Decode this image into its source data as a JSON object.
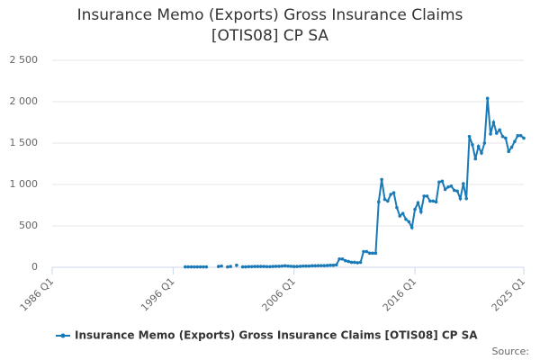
{
  "chart_data": {
    "type": "line",
    "title": "Insurance Memo (Exports) Gross Insurance Claims [OTIS08] CP SA",
    "source": "Source:",
    "categories": [
      "1986 Q1",
      null,
      null,
      null,
      null,
      null,
      null,
      null,
      null,
      null,
      null,
      null,
      null,
      null,
      null,
      null,
      null,
      null,
      null,
      null,
      null,
      null,
      null,
      null,
      null,
      null,
      null,
      null,
      null,
      null,
      null,
      null,
      null,
      null,
      null,
      null,
      null,
      null,
      null,
      null,
      "1996 Q1",
      null,
      null,
      null,
      null,
      null,
      null,
      null,
      null,
      null,
      null,
      null,
      null,
      null,
      null,
      null,
      null,
      null,
      null,
      null,
      null,
      null,
      null,
      null,
      null,
      null,
      null,
      null,
      null,
      null,
      null,
      null,
      null,
      null,
      null,
      null,
      null,
      null,
      null,
      null,
      "2006 Q1",
      null,
      null,
      null,
      null,
      null,
      null,
      null,
      null,
      null,
      null,
      null,
      null,
      null,
      null,
      null,
      null,
      null,
      null,
      null,
      null,
      null,
      null,
      null,
      null,
      null,
      null,
      null,
      null,
      null,
      null,
      null,
      null,
      null,
      null,
      null,
      null,
      null,
      null,
      null,
      "2016 Q1",
      null,
      null,
      null,
      null,
      null,
      null,
      null,
      null,
      null,
      null,
      null,
      null,
      null,
      null,
      null,
      null,
      null,
      null,
      null,
      null,
      null,
      null,
      null,
      null,
      null,
      null,
      null,
      null,
      null,
      null,
      null,
      null,
      null,
      null,
      null,
      "2025 Q1"
    ],
    "series": [
      {
        "name": "Insurance Memo (Exports) Gross Insurance Claims [OTIS08] CP SA",
        "color": "#1a7ab8",
        "values": [
          null,
          null,
          null,
          null,
          null,
          null,
          null,
          null,
          null,
          null,
          null,
          null,
          null,
          null,
          null,
          null,
          null,
          null,
          null,
          null,
          null,
          null,
          null,
          null,
          null,
          null,
          null,
          null,
          null,
          null,
          null,
          null,
          null,
          null,
          null,
          null,
          null,
          null,
          null,
          null,
          null,
          null,
          null,
          null,
          5,
          5,
          5,
          5,
          5,
          5,
          5,
          5,
          null,
          null,
          null,
          10,
          15,
          null,
          5,
          10,
          null,
          25,
          null,
          5,
          5,
          8,
          8,
          10,
          10,
          10,
          10,
          8,
          8,
          10,
          12,
          12,
          15,
          18,
          15,
          12,
          10,
          10,
          12,
          15,
          15,
          15,
          18,
          18,
          20,
          20,
          20,
          22,
          25,
          25,
          30,
          100,
          100,
          80,
          70,
          60,
          60,
          55,
          60,
          190,
          190,
          170,
          170,
          170,
          790,
          1060,
          820,
          800,
          880,
          900,
          720,
          620,
          650,
          580,
          550,
          480,
          700,
          780,
          670,
          860,
          860,
          800,
          800,
          790,
          1030,
          1040,
          940,
          970,
          980,
          930,
          920,
          830,
          1010,
          830,
          1580,
          1480,
          1310,
          1460,
          1380,
          1500,
          2040,
          1610,
          1750,
          1620,
          1660,
          1580,
          1560,
          1400,
          1450,
          1520,
          1590,
          1590,
          1560
        ]
      }
    ],
    "ylim": [
      0,
      2500
    ],
    "yticks": [
      0,
      500,
      {
        "value": 1000,
        "label": "1 000"
      },
      {
        "value": 1500,
        "label": "1 500"
      },
      {
        "value": 2000,
        "label": "2 000"
      },
      {
        "value": 2500,
        "label": "2 500"
      }
    ],
    "grid": true,
    "legend": "bottom"
  }
}
